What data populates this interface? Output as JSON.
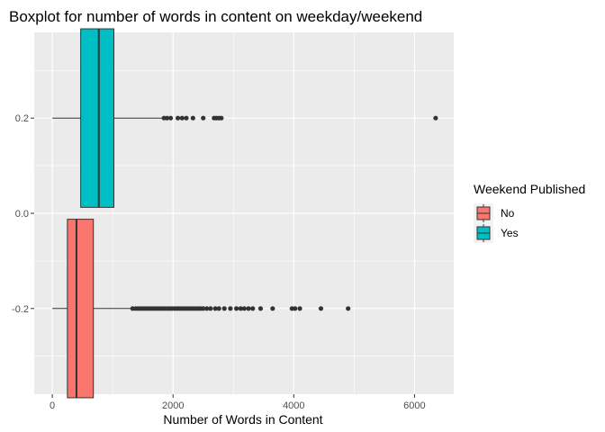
{
  "chart_data": {
    "type": "boxplot",
    "orientation": "horizontal",
    "title": "Boxplot for number of words in content on weekday/weekend",
    "xlabel": "Number of Words in Content",
    "ylabel": "",
    "xlim": [
      -300,
      6650
    ],
    "ylim": [
      -0.38,
      0.38
    ],
    "x_ticks": [
      0,
      2000,
      4000,
      6000
    ],
    "y_ticks": [
      -0.2,
      0.0,
      0.2
    ],
    "y_tick_labels": [
      "-0.2",
      "0.0",
      "0.2"
    ],
    "grid": true,
    "legend": {
      "title": "Weekend Published",
      "position": "right",
      "entries": [
        {
          "label": "No",
          "color": "#F8766D"
        },
        {
          "label": "Yes",
          "color": "#00BFC4"
        }
      ]
    },
    "series": [
      {
        "name": "No",
        "color": "#F8766D",
        "y_center": -0.2,
        "width": 0.375,
        "whisker_low": 0,
        "q1": 250,
        "median": 400,
        "q3": 680,
        "whisker_high": 1300,
        "outliers": [
          1330,
          1380,
          1420,
          1460,
          1500,
          1540,
          1580,
          1620,
          1660,
          1700,
          1740,
          1780,
          1820,
          1860,
          1900,
          1940,
          1980,
          2020,
          2060,
          2100,
          2140,
          2180,
          2220,
          2260,
          2300,
          2340,
          2380,
          2420,
          2460,
          2500,
          2560,
          2620,
          2700,
          2760,
          2850,
          2950,
          3050,
          3120,
          3180,
          3250,
          3320,
          3450,
          3650,
          3970,
          4020,
          4100,
          4450,
          4900
        ]
      },
      {
        "name": "Yes",
        "color": "#00BFC4",
        "y_center": 0.2,
        "width": 0.375,
        "whisker_low": 0,
        "q1": 470,
        "median": 770,
        "q3": 1020,
        "whisker_high": 1820,
        "outliers": [
          1850,
          1900,
          1960,
          2080,
          2150,
          2220,
          2330,
          2500,
          2680,
          2720,
          2760,
          2800,
          6350
        ]
      }
    ]
  },
  "colors": {
    "panel_background": "#EBEBEB",
    "gridline": "#FFFFFF",
    "outline": "#333333"
  }
}
